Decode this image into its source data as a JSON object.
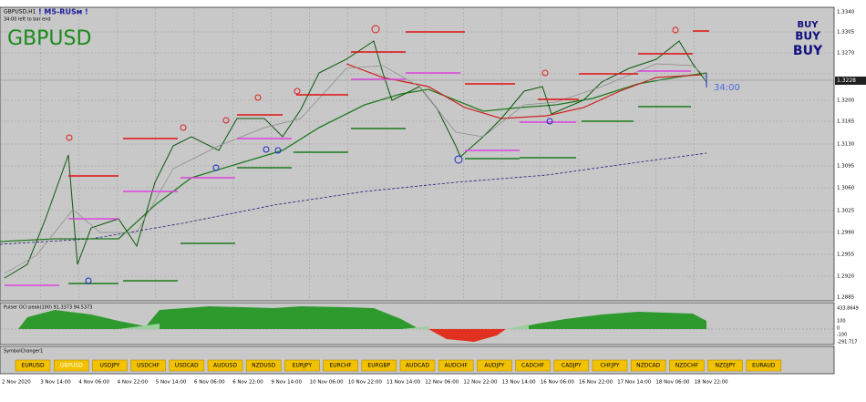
{
  "header": {
    "symbol_period": "GBPUSD,H1",
    "indicator_tag": "! M5-RUSм !",
    "timer": "34:00 left to bar end",
    "symbol": "GBPUSD"
  },
  "signals": [
    "BUY",
    "BUY",
    "BUY"
  ],
  "countdown": "34:00",
  "price_axis": [
    "1.3340",
    "1.3305",
    "1.3270",
    "1.3200",
    "1.3165",
    "1.3130",
    "1.3095",
    "1.3060",
    "1.3025",
    "1.2990",
    "1.2955",
    "1.2920",
    "1.2885"
  ],
  "current_price": "1.3228",
  "oscillator": {
    "label": "Pulser OCI peak(100) 91.3373 94.5373",
    "axis": [
      "433.8649",
      "100",
      "0",
      "-100",
      "-291.717"
    ]
  },
  "symbol_changer": {
    "label": "SymbolChanger1",
    "buttons": [
      "EURUSD",
      "GBPUSD",
      "USDJPY",
      "USDCHF",
      "USDCAD",
      "AUDUSD",
      "NZDUSD",
      "EURJPY",
      "EURCHF",
      "EURGBP",
      "AUDCAD",
      "AUDCHF",
      "AUDJPY",
      "CADCHF",
      "CADJPY",
      "CHFJPY",
      "NZDCAD",
      "NZDCHF",
      "NZDJPY",
      "EURAUD"
    ],
    "active": "GBPUSD"
  },
  "time_axis": [
    "2 Nov 2020",
    "3 Nov 14:00",
    "4 Nov 06:00",
    "4 Nov 22:00",
    "5 Nov 14:00",
    "6 Nov 06:00",
    "6 Nov 22:00",
    "9 Nov 14:00",
    "10 Nov 06:00",
    "10 Nov 22:00",
    "11 Nov 14:00",
    "12 Nov 06:00",
    "12 Nov 22:00",
    "13 Nov 14:00",
    "16 Nov 06:00",
    "16 Nov 22:00",
    "17 Nov 14:00",
    "18 Nov 06:00",
    "18 Nov 22:00"
  ]
}
